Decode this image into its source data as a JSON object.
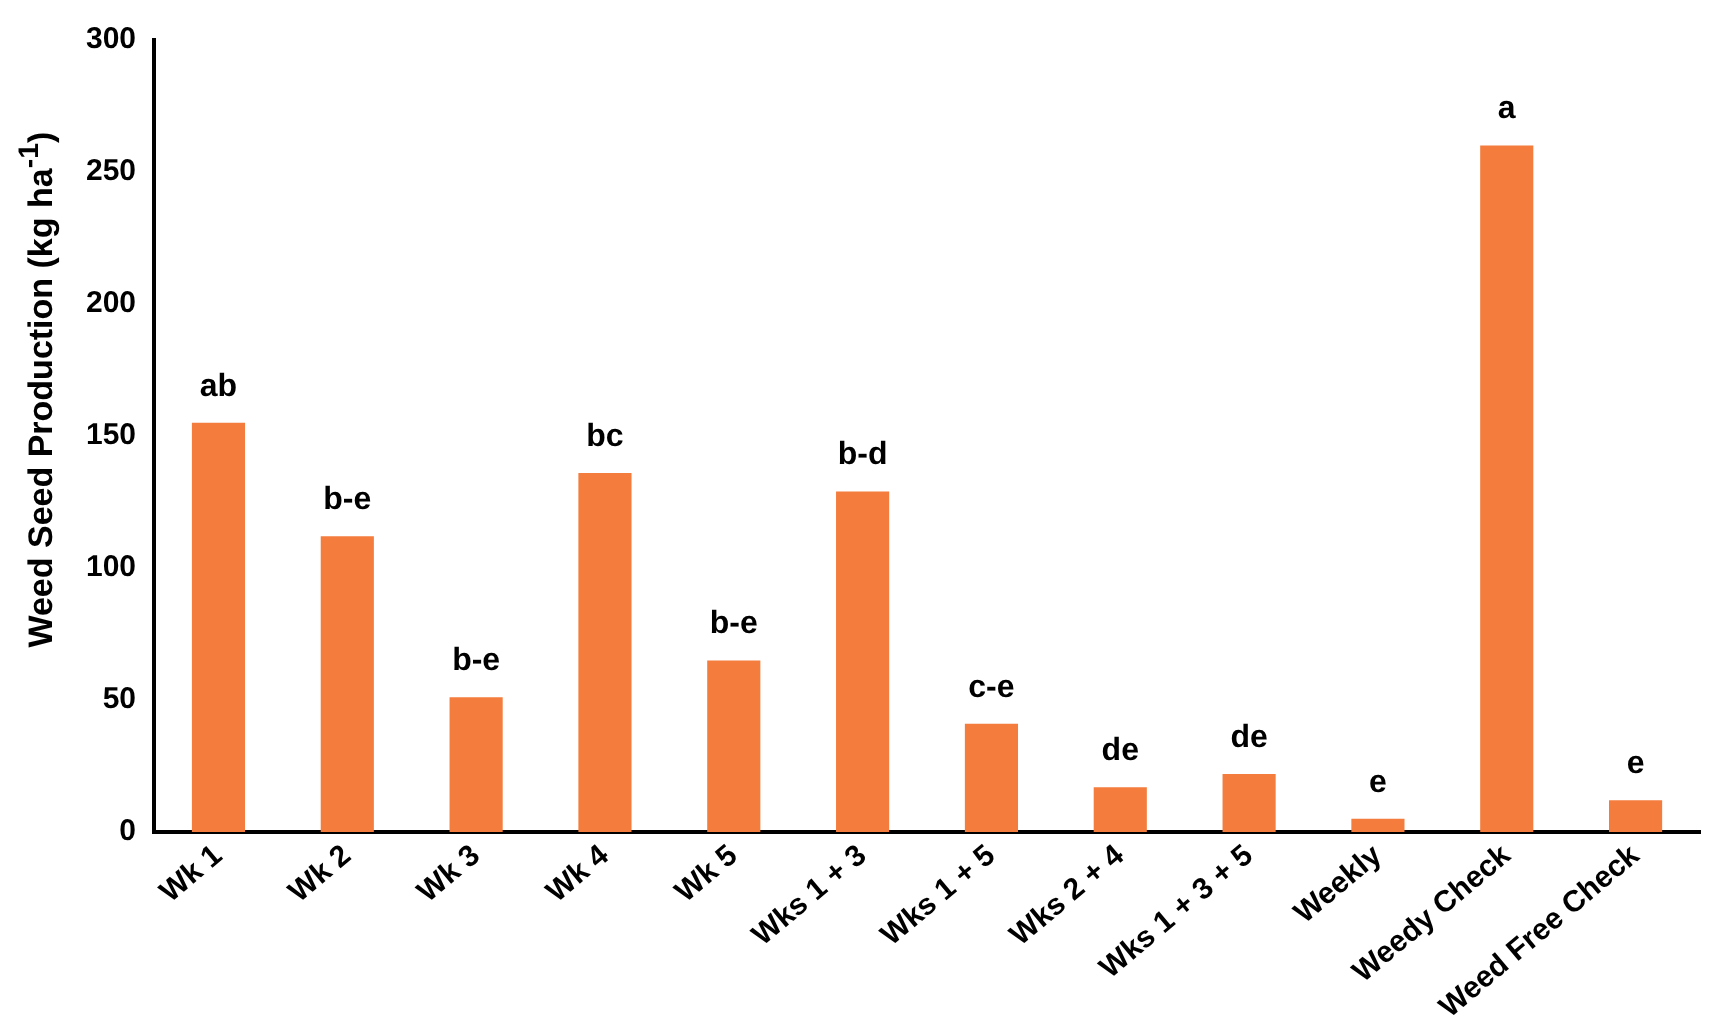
{
  "chart_data": {
    "type": "bar",
    "ylabel": "Weed Seed Production (kg ha$^{-1}$)",
    "categories": [
      "Wk 1",
      "Wk 2",
      "Wk 3",
      "Wk 4",
      "Wk 5",
      "Wks 1 + 3",
      "Wks 1 + 5",
      "Wks 2 + 4",
      "Wks 1 + 3 + 5",
      "Weekly",
      "Weedy Check",
      "Weed Free Check"
    ],
    "values": [
      155,
      112,
      51,
      136,
      65,
      129,
      41,
      17,
      22,
      5,
      260,
      12
    ],
    "value_labels": [
      "ab",
      "b-e",
      "b-e",
      "bc",
      "b-e",
      "b-d",
      "c-e",
      "de",
      "de",
      "e",
      "a",
      "e"
    ],
    "color": "#f47c3c",
    "ylim": [
      0,
      300
    ],
    "yticks": [
      0,
      50,
      100,
      150,
      200,
      250,
      300
    ],
    "grid": false,
    "legend": false
  }
}
